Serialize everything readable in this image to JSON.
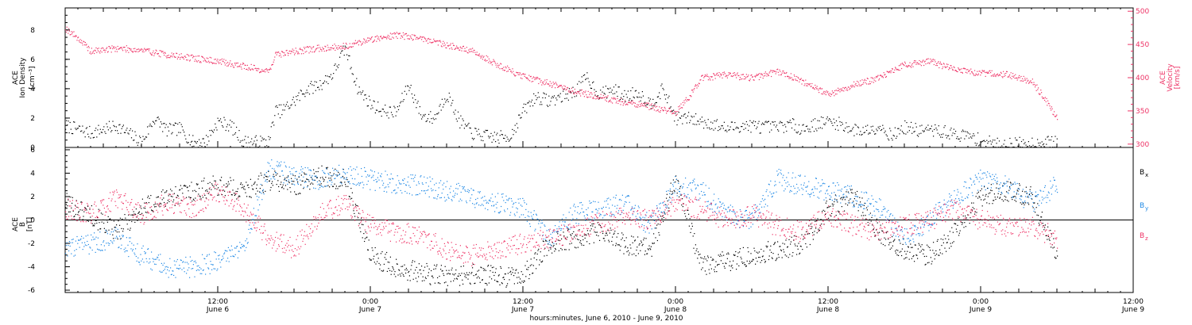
{
  "chart_data": [
    {
      "type": "scatter",
      "panel": "top",
      "ylabel_left": [
        "ACE",
        "Ion Density",
        "[cm⁻³]"
      ],
      "ylabel_right": [
        "ACE",
        "Velocity",
        "[km/s]"
      ],
      "left_axis": {
        "ylim": [
          0,
          9.5
        ],
        "ticks": [
          0,
          2,
          4,
          6,
          8
        ],
        "tick_labels": [
          "0",
          "2",
          "4",
          "6",
          "8"
        ]
      },
      "right_axis": {
        "ylim": [
          295,
          505
        ],
        "ticks": [
          300,
          350,
          400,
          450,
          500
        ],
        "tick_labels": [
          "300",
          "350",
          "400",
          "450",
          "500"
        ]
      },
      "xlim": [
        0,
        84
      ],
      "series": [
        {
          "axis": "left",
          "color": "#000000",
          "x": [
            0,
            2,
            4,
            6,
            7,
            8,
            9,
            10,
            11,
            12,
            13,
            14,
            15,
            16,
            16.5,
            17,
            18,
            19,
            20,
            21,
            22,
            23,
            24,
            25,
            26,
            27,
            28,
            29,
            30,
            31,
            32,
            33,
            34,
            35,
            36,
            37,
            38,
            39,
            40,
            41,
            42,
            43,
            44,
            45,
            46,
            47,
            48,
            49,
            50,
            51,
            52,
            53,
            54,
            55,
            56,
            57,
            58,
            59,
            60,
            61,
            62,
            63,
            64,
            65,
            66,
            67,
            68,
            69,
            70,
            71,
            72,
            73,
            74,
            75,
            76,
            77,
            78
          ],
          "y": [
            1.5,
            1.0,
            1.5,
            0.4,
            2.0,
            1.2,
            1.3,
            0.4,
            0.4,
            1.8,
            1.5,
            0.4,
            0.4,
            0.4,
            2.5,
            2.5,
            3.2,
            4.0,
            4.3,
            5.0,
            6.8,
            4.0,
            3.0,
            2.5,
            2.4,
            4.3,
            2.2,
            2.0,
            3.7,
            1.8,
            1.0,
            0.8,
            0.7,
            0.8,
            2.5,
            3.5,
            3.2,
            3.5,
            3.8,
            4.8,
            3.6,
            4.0,
            3.5,
            3.8,
            3.0,
            4.0,
            2.0,
            2.0,
            1.8,
            1.6,
            1.3,
            1.5,
            1.5,
            1.4,
            1.4,
            1.6,
            1.3,
            1.6,
            1.8,
            1.6,
            1.2,
            1.2,
            1.5,
            0.8,
            1.4,
            1.2,
            1.2,
            1.1,
            0.9,
            0.8,
            0.5,
            0.3,
            0.2,
            0.3,
            0.3,
            0.4,
            0.4
          ]
        },
        {
          "axis": "right",
          "color": "#ee3366",
          "x": [
            0,
            1,
            2,
            4,
            6,
            8,
            10,
            12,
            14,
            16,
            16.5,
            18,
            20,
            22,
            24,
            26,
            28,
            30,
            32,
            34,
            36,
            38,
            40,
            42,
            44,
            46,
            48,
            49,
            50,
            52,
            54,
            56,
            58,
            60,
            62,
            64,
            66,
            68,
            70,
            72,
            74,
            76,
            77,
            78
          ],
          "y": [
            475,
            460,
            440,
            445,
            442,
            435,
            430,
            425,
            418,
            410,
            435,
            440,
            445,
            448,
            458,
            465,
            460,
            450,
            440,
            420,
            402,
            392,
            380,
            372,
            363,
            357,
            348,
            370,
            400,
            405,
            400,
            410,
            395,
            375,
            390,
            400,
            420,
            425,
            412,
            407,
            405,
            395,
            370,
            340
          ]
        }
      ]
    },
    {
      "type": "scatter",
      "panel": "bottom",
      "ylabel_left": [
        "ACE",
        "B",
        "[nT]"
      ],
      "ylim": [
        -6.2,
        6.2
      ],
      "yticks": [
        -6,
        -4,
        -2,
        0,
        2,
        4,
        6
      ],
      "ytick_labels": [
        "-6",
        "-4",
        "-2",
        "0",
        "2",
        "4",
        "6"
      ],
      "xlim": [
        0,
        84
      ],
      "zero_line": true,
      "legend_placement": "right",
      "series": [
        {
          "name": "Bx",
          "label_main": "B",
          "label_sub": "x",
          "color": "#000000",
          "x": [
            0,
            2,
            4,
            6,
            8,
            10,
            12,
            14,
            16,
            18,
            20,
            22,
            24,
            26,
            28,
            30,
            32,
            34,
            36,
            38,
            40,
            42,
            44,
            46,
            48,
            50,
            52,
            54,
            56,
            58,
            60,
            62,
            64,
            66,
            68,
            70,
            72,
            74,
            76,
            78
          ],
          "y": [
            1.5,
            0.5,
            -1.0,
            1.0,
            2.0,
            2.5,
            3.0,
            2.5,
            3.5,
            3.0,
            3.8,
            3.5,
            -3.0,
            -4.0,
            -4.5,
            -4.8,
            -4.6,
            -4.8,
            -4.8,
            -2.0,
            -1.5,
            -1.0,
            -2.0,
            -2.5,
            3.5,
            -3.8,
            -3.5,
            -3.0,
            -2.5,
            -2.0,
            1.0,
            2.0,
            -1.0,
            -2.5,
            -3.0,
            -1.0,
            2.0,
            2.5,
            2.0,
            -3.0
          ]
        },
        {
          "name": "By",
          "label_main": "B",
          "label_sub": "y",
          "color": "#1e88e5",
          "x": [
            0,
            2,
            4,
            6,
            8,
            10,
            12,
            14,
            16,
            18,
            20,
            22,
            24,
            26,
            28,
            30,
            32,
            34,
            36,
            38,
            40,
            42,
            44,
            46,
            48,
            50,
            52,
            54,
            56,
            58,
            60,
            62,
            64,
            66,
            68,
            70,
            72,
            74,
            76,
            78
          ],
          "y": [
            -2.5,
            -2.0,
            -1.5,
            -3.0,
            -4.0,
            -4.0,
            -3.5,
            -2.5,
            4.5,
            3.8,
            3.5,
            4.0,
            3.5,
            3.2,
            3.0,
            2.5,
            2.0,
            1.5,
            1.0,
            -1.5,
            0.5,
            1.0,
            1.5,
            -0.5,
            3.0,
            2.5,
            0.5,
            0.0,
            3.5,
            3.0,
            2.5,
            2.0,
            1.0,
            -1.5,
            0.0,
            2.0,
            3.5,
            3.0,
            1.5,
            3.0
          ]
        },
        {
          "name": "Bz",
          "label_main": "B",
          "label_sub": "z",
          "color": "#ee3366",
          "x": [
            0,
            2,
            4,
            6,
            8,
            10,
            12,
            14,
            16,
            18,
            20,
            22,
            24,
            26,
            28,
            30,
            32,
            34,
            36,
            38,
            40,
            42,
            44,
            46,
            48,
            50,
            52,
            54,
            56,
            58,
            60,
            62,
            64,
            66,
            68,
            70,
            72,
            74,
            76,
            78
          ],
          "y": [
            1.0,
            0.5,
            2.0,
            0.5,
            1.5,
            1.0,
            2.5,
            1.0,
            -1.5,
            -2.5,
            0.5,
            1.5,
            -0.5,
            -1.0,
            -1.2,
            -2.5,
            -3.0,
            -2.5,
            -2.0,
            -1.5,
            -1.0,
            -0.2,
            0.3,
            0.0,
            1.5,
            1.0,
            0.0,
            0.5,
            -0.5,
            -1.0,
            0.5,
            -0.5,
            -1.0,
            -0.5,
            0.0,
            1.0,
            0.0,
            -0.5,
            -0.5,
            -1.5
          ]
        }
      ]
    }
  ],
  "x_axis": {
    "ticks": [
      {
        "hours": 12,
        "time": "12:00",
        "date": "June 6"
      },
      {
        "hours": 24,
        "time": "0:00",
        "date": "June 7"
      },
      {
        "hours": 36,
        "time": "12:00",
        "date": "June 7"
      },
      {
        "hours": 48,
        "time": "0:00",
        "date": "June 8"
      },
      {
        "hours": 60,
        "time": "12:00",
        "date": "June 8"
      },
      {
        "hours": 72,
        "time": "0:00",
        "date": "June 9"
      },
      {
        "hours": 84,
        "time": "12:00",
        "date": "June 9"
      }
    ],
    "xlabel": "hours:minutes, June  6, 2010 - June  9, 2010"
  }
}
